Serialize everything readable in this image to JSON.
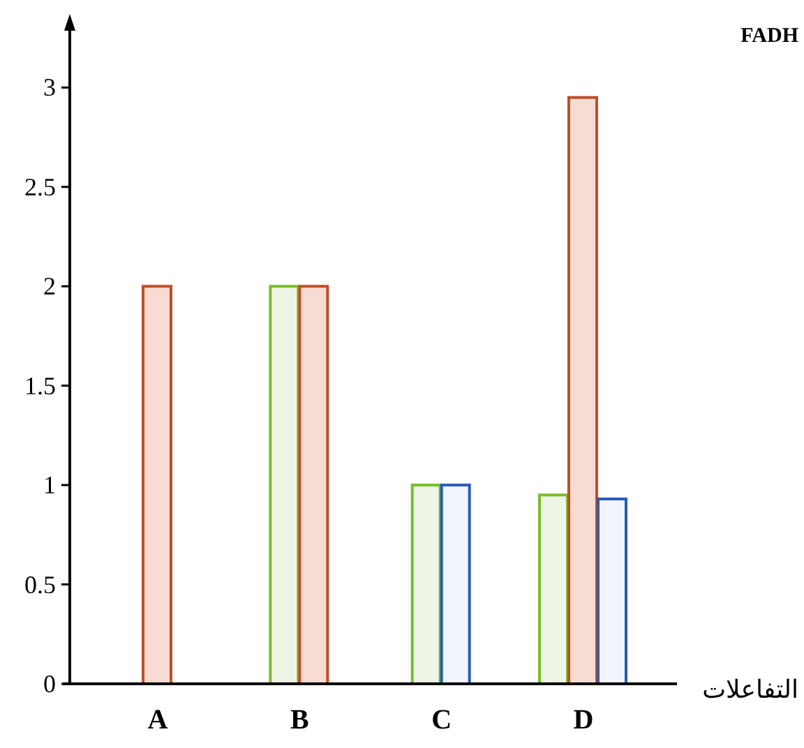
{
  "chart_data": {
    "type": "bar",
    "xlabel": "التفاعلات",
    "categories": [
      "A",
      "B",
      "C",
      "D"
    ],
    "series": [
      {
        "color": "#eef5e6",
        "values": [
          null,
          2,
          1,
          0.95
        ]
      },
      {
        "color": "#f6dcd3",
        "values": [
          2,
          2,
          null,
          2.95
        ]
      },
      {
        "color": "#f2f5fb",
        "values": [
          null,
          null,
          1,
          0.93
        ]
      }
    ],
    "ylim": [
      0,
      3.3
    ],
    "yticks": [
      0,
      0.5,
      1,
      1.5,
      2,
      2.5,
      3
    ],
    "grid": false,
    "annotations": [
      "FADH"
    ]
  }
}
